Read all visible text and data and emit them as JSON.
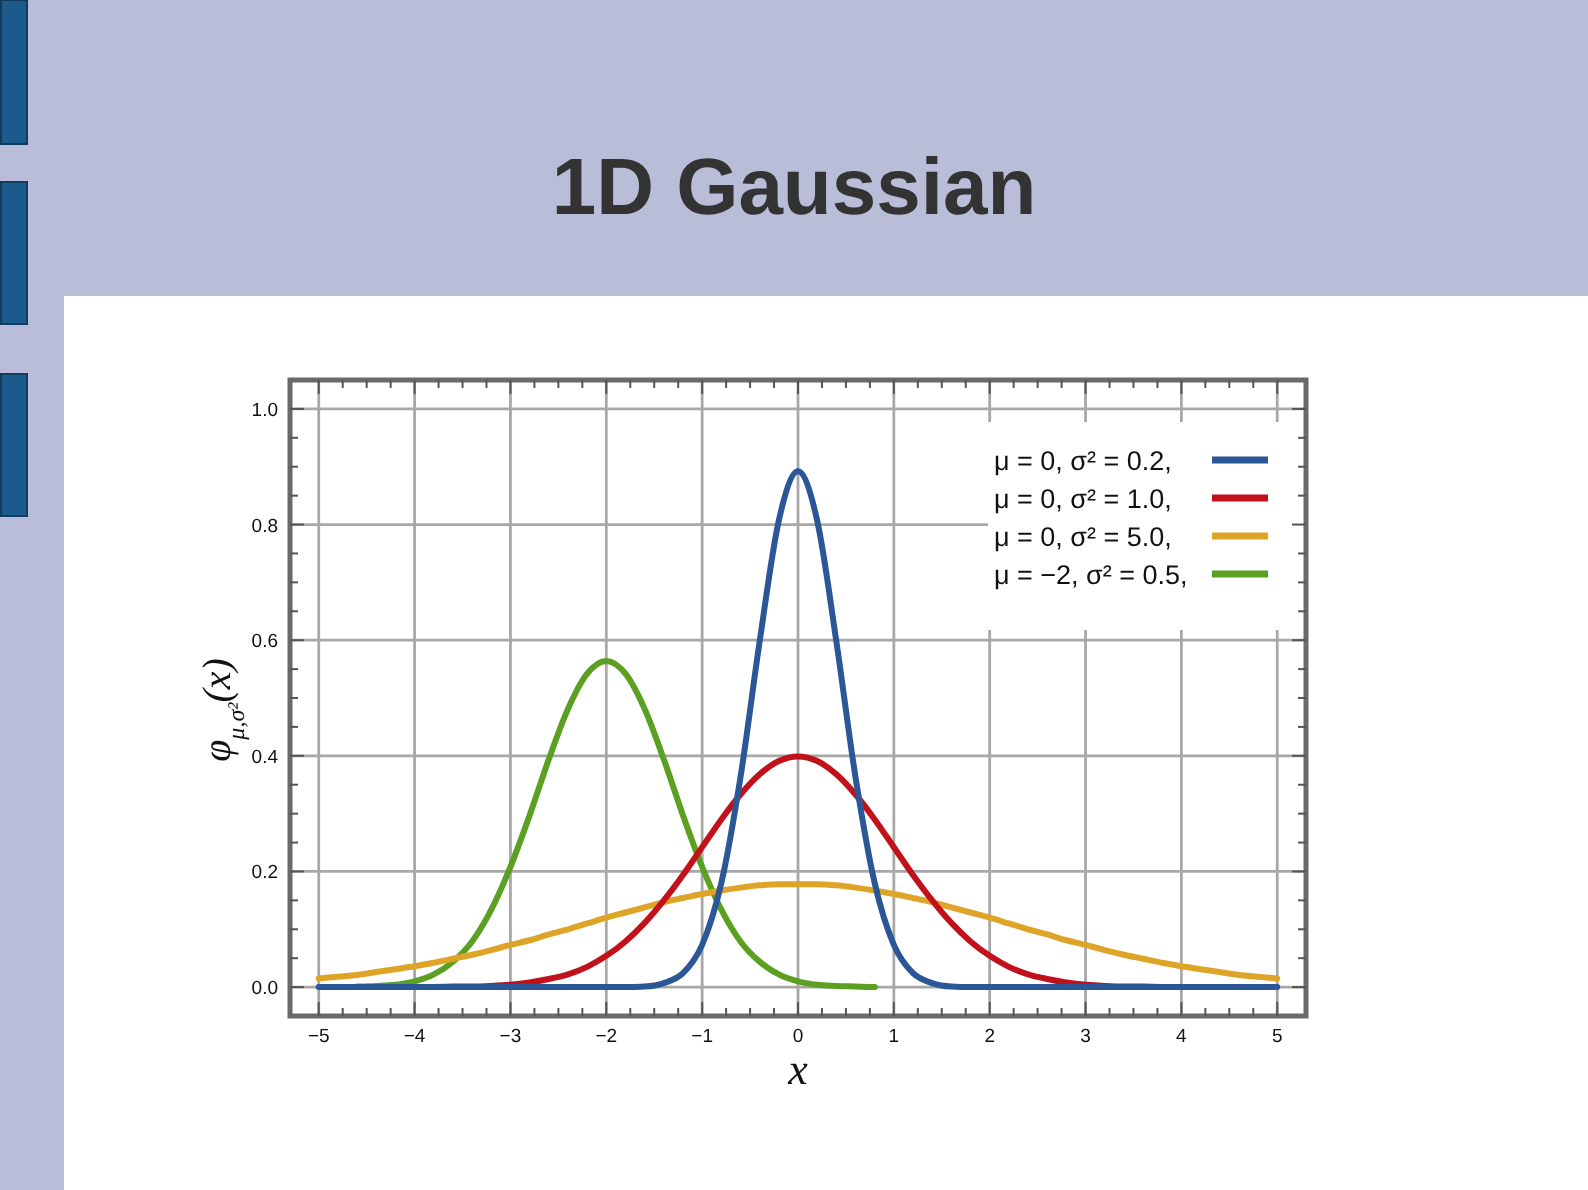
{
  "chart_data": {
    "type": "line",
    "title": "1D Gaussian",
    "xlabel": "x",
    "ylabel": "φ$_{μ,σ²}$(x)",
    "x": [
      -5,
      -4.8,
      -4.6,
      -4.4,
      -4.2,
      -4,
      -3.8,
      -3.6,
      -3.4,
      -3.2,
      -3,
      -2.8,
      -2.6,
      -2.4,
      -2.2,
      -2,
      -1.8,
      -1.6,
      -1.4,
      -1.2,
      -1,
      -0.8,
      -0.6,
      -0.4,
      -0.2,
      0,
      0.2,
      0.4,
      0.6,
      0.8,
      1,
      1.2,
      1.4,
      1.6,
      1.8,
      2,
      2.2,
      2.4,
      2.6,
      2.8,
      3,
      3.2,
      3.4,
      3.6,
      3.8,
      4,
      4.2,
      4.4,
      4.6,
      4.8,
      5
    ],
    "series": [
      {
        "name": "μ = 0, σ² = 0.2,",
        "color": "#2b5797",
        "values": [
          0,
          0,
          0,
          0,
          0,
          0,
          0,
          0,
          0,
          0,
          0,
          0,
          0,
          0,
          0,
          0,
          0,
          0.001,
          0.007,
          0.024,
          0.073,
          0.18,
          0.363,
          0.598,
          0.807,
          0.892,
          0.807,
          0.598,
          0.363,
          0.18,
          0.073,
          0.024,
          0.007,
          0.001,
          0,
          0,
          0,
          0,
          0,
          0,
          0,
          0,
          0,
          0,
          0,
          0,
          0,
          0,
          0,
          0,
          0
        ]
      },
      {
        "name": "μ = 0, σ² = 1.0,",
        "color": "#c1121c",
        "values": [
          null,
          null,
          null,
          null,
          null,
          null,
          0,
          0.001,
          0.001,
          0.002,
          0.004,
          0.008,
          0.014,
          0.022,
          0.035,
          0.054,
          0.079,
          0.111,
          0.15,
          0.194,
          0.242,
          0.29,
          0.333,
          0.368,
          0.391,
          0.399,
          0.391,
          0.368,
          0.333,
          0.29,
          0.242,
          0.194,
          0.15,
          0.111,
          0.079,
          0.054,
          0.035,
          0.022,
          0.014,
          0.008,
          0.004,
          0.002,
          0.001,
          0.001,
          0,
          null,
          null,
          null,
          null,
          null,
          null
        ]
      },
      {
        "name": "μ = 0, σ² = 5.0,",
        "color": "#dea428",
        "values": [
          0.015,
          0.018,
          0.021,
          0.026,
          0.031,
          0.036,
          0.042,
          0.049,
          0.056,
          0.064,
          0.073,
          0.081,
          0.091,
          0.1,
          0.11,
          0.12,
          0.129,
          0.138,
          0.147,
          0.154,
          0.161,
          0.167,
          0.172,
          0.176,
          0.178,
          0.178,
          0.178,
          0.176,
          0.172,
          0.167,
          0.161,
          0.154,
          0.147,
          0.138,
          0.129,
          0.12,
          0.11,
          0.1,
          0.091,
          0.081,
          0.073,
          0.064,
          0.056,
          0.049,
          0.042,
          0.036,
          0.031,
          0.026,
          0.021,
          0.018,
          0.015
        ]
      },
      {
        "name": "μ = −2, σ² = 0.5,",
        "color": "#5ca022",
        "values": [
          null,
          null,
          0.001,
          0.002,
          0.004,
          0.01,
          0.022,
          0.044,
          0.079,
          0.134,
          0.208,
          0.297,
          0.394,
          0.481,
          0.542,
          0.564,
          0.542,
          0.481,
          0.394,
          0.297,
          0.208,
          0.134,
          0.079,
          0.044,
          0.022,
          0.01,
          0.004,
          0.002,
          0.001,
          0,
          null,
          null,
          null,
          null,
          null,
          null,
          null,
          null,
          null,
          null,
          null,
          null,
          null,
          null,
          null,
          null,
          null,
          null,
          null,
          null,
          null
        ]
      }
    ],
    "xlim": [
      -5.3,
      5.3
    ],
    "ylim": [
      -0.05,
      1.05
    ],
    "xticks": [
      -5,
      {
        "value": -4.75,
        "label": null
      },
      {
        "value": -4.5,
        "label": null
      },
      {
        "value": -4.25,
        "label": null
      },
      -4,
      {
        "value": -3.75,
        "label": null
      },
      {
        "value": -3.5,
        "label": null
      },
      {
        "value": -3.25,
        "label": null
      },
      -3,
      {
        "value": -2.75,
        "label": null
      },
      {
        "value": -2.5,
        "label": null
      },
      {
        "value": -2.25,
        "label": null
      },
      -2,
      {
        "value": -1.75,
        "label": null
      },
      {
        "value": -1.5,
        "label": null
      },
      {
        "value": -1.25,
        "label": null
      },
      -1,
      {
        "value": -0.75,
        "label": null
      },
      {
        "value": -0.5,
        "label": null
      },
      {
        "value": -0.25,
        "label": null
      },
      0,
      {
        "value": 0.25,
        "label": null
      },
      {
        "value": 0.5,
        "label": null
      },
      {
        "value": 0.75,
        "label": null
      },
      1,
      {
        "value": 1.25,
        "label": null
      },
      {
        "value": 1.5,
        "label": null
      },
      {
        "value": 1.75,
        "label": null
      },
      2,
      {
        "value": 2.25,
        "label": null
      },
      {
        "value": 2.5,
        "label": null
      },
      {
        "value": 2.75,
        "label": null
      },
      3,
      {
        "value": 3.25,
        "label": null
      },
      {
        "value": 3.5,
        "label": null
      },
      {
        "value": 3.75,
        "label": null
      },
      4,
      {
        "value": 4.25,
        "label": null
      },
      {
        "value": 4.5,
        "label": null
      },
      {
        "value": 4.75,
        "label": null
      },
      5
    ],
    "yticks": [
      {
        "value": 0,
        "label": "0.0"
      },
      {
        "value": 0.05,
        "label": null
      },
      {
        "value": 0.1,
        "label": null
      },
      {
        "value": 0.15,
        "label": null
      },
      0.2,
      {
        "value": 0.25,
        "label": null
      },
      {
        "value": 0.3,
        "label": null
      },
      {
        "value": 0.35,
        "label": null
      },
      0.4,
      {
        "value": 0.45,
        "label": null
      },
      {
        "value": 0.5,
        "label": null
      },
      {
        "value": 0.55,
        "label": null
      },
      0.6,
      {
        "value": 0.65,
        "label": null
      },
      {
        "value": 0.7,
        "label": null
      },
      {
        "value": 0.75,
        "label": null
      },
      0.8,
      {
        "value": 0.85,
        "label": null
      },
      {
        "value": 0.9,
        "label": null
      },
      {
        "value": 0.95,
        "label": null
      },
      {
        "value": 1,
        "label": "1.0"
      }
    ],
    "grid": true,
    "legend": "top right",
    "line_style": "solid"
  }
}
